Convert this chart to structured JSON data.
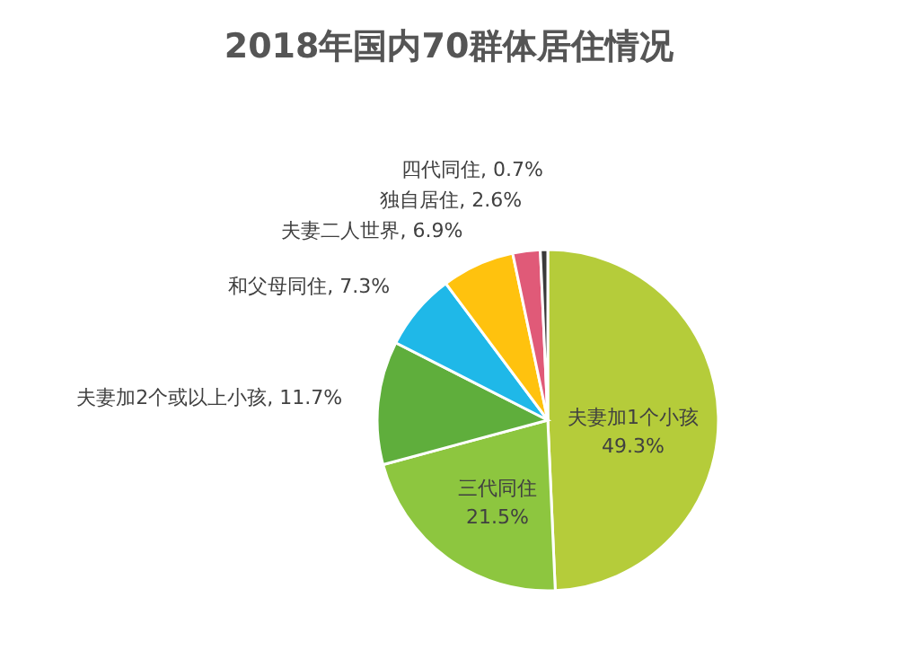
{
  "chart_data": {
    "type": "pie",
    "title": "2018年国内70群体居住情况",
    "categories": [
      "夫妻加1个小孩",
      "三代同住",
      "夫妻加2个或以上小孩",
      "和父母同住",
      "夫妻二人世界",
      "独自居住",
      "四代同住"
    ],
    "values": [
      49.3,
      21.5,
      11.7,
      7.3,
      6.9,
      2.6,
      0.7
    ],
    "value_labels": [
      "49.3%",
      "21.5%",
      "11.7%",
      "7.3%",
      "6.9%",
      "2.6%",
      "0.7%"
    ],
    "colors": [
      "#b5cc3a",
      "#8dc63f",
      "#5fae3c",
      "#1fb8e8",
      "#ffc20e",
      "#e05a78",
      "#3a3a3a"
    ],
    "legend": false
  }
}
